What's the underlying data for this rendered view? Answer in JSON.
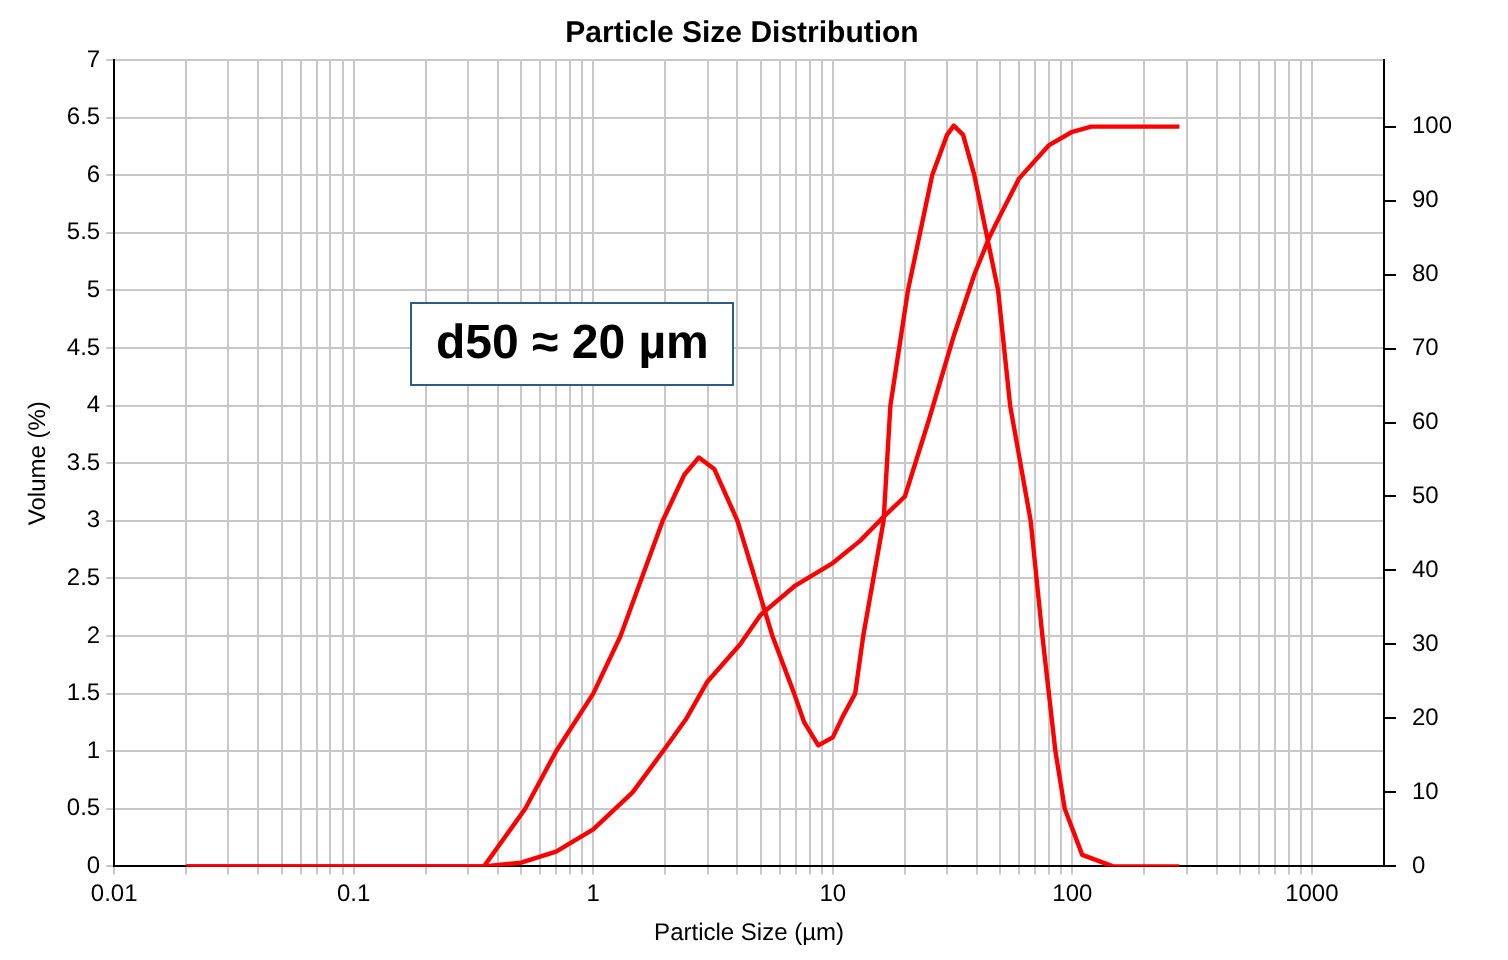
{
  "chart_data": {
    "type": "line",
    "title": "Particle Size Distribution",
    "xlabel": "Particle Size (µm)",
    "ylabel": "Volume (%)",
    "annotations": [
      "d50 ≈ 20 µm"
    ],
    "log": "x",
    "grid": true,
    "legend": false,
    "marker": "none",
    "line_style": "solid",
    "xlim": [
      0.01,
      2000
    ],
    "xticks": [
      0.01,
      {
        "value": 0.02,
        "label": null
      },
      {
        "value": 0.03,
        "label": null
      },
      {
        "value": 0.04,
        "label": null
      },
      {
        "value": 0.05,
        "label": null
      },
      {
        "value": 0.06,
        "label": null
      },
      {
        "value": 0.07,
        "label": null
      },
      {
        "value": 0.08,
        "label": null
      },
      {
        "value": 0.09,
        "label": null
      },
      0.1,
      {
        "value": 0.2,
        "label": null
      },
      {
        "value": 0.3,
        "label": null
      },
      {
        "value": 0.4,
        "label": null
      },
      {
        "value": 0.5,
        "label": null
      },
      {
        "value": 0.6,
        "label": null
      },
      {
        "value": 0.7,
        "label": null
      },
      {
        "value": 0.8,
        "label": null
      },
      {
        "value": 0.9,
        "label": null
      },
      1,
      {
        "value": 2,
        "label": null
      },
      {
        "value": 3,
        "label": null
      },
      {
        "value": 4,
        "label": null
      },
      {
        "value": 5,
        "label": null
      },
      {
        "value": 6,
        "label": null
      },
      {
        "value": 7,
        "label": null
      },
      {
        "value": 8,
        "label": null
      },
      {
        "value": 9,
        "label": null
      },
      10,
      {
        "value": 20,
        "label": null
      },
      {
        "value": 30,
        "label": null
      },
      {
        "value": 40,
        "label": null
      },
      {
        "value": 50,
        "label": null
      },
      {
        "value": 60,
        "label": null
      },
      {
        "value": 70,
        "label": null
      },
      {
        "value": 80,
        "label": null
      },
      {
        "value": 90,
        "label": null
      },
      100,
      {
        "value": 200,
        "label": null
      },
      {
        "value": 300,
        "label": null
      },
      {
        "value": 400,
        "label": null
      },
      {
        "value": 500,
        "label": null
      },
      {
        "value": 600,
        "label": null
      },
      {
        "value": 700,
        "label": null
      },
      {
        "value": 800,
        "label": null
      },
      {
        "value": 900,
        "label": null
      },
      1000
    ],
    "ylim": [
      0,
      7
    ],
    "yticks": [
      0,
      0.5,
      1,
      1.5,
      2,
      2.5,
      3,
      3.5,
      4,
      4.5,
      5,
      5.5,
      6,
      6.5,
      7
    ],
    "y2lim": [
      0,
      109
    ],
    "y2ticks": [
      0,
      10,
      20,
      30,
      40,
      50,
      60,
      70,
      80,
      90,
      100
    ],
    "series": [
      {
        "color": "#ff0000",
        "x": [
          0.02,
          0.35,
          0.52,
          0.7,
          1,
          1.3,
          1.95,
          2.4,
          2.76,
          3.2,
          4,
          5.6,
          6.9,
          7.6,
          8.7,
          10,
          11,
          12.4,
          13.4,
          16.3,
          17.4,
          20.6,
          26,
          30,
          32,
          35,
          39,
          49,
          55,
          67,
          75,
          85,
          93,
          110,
          148,
          280
        ],
        "values": [
          0,
          0,
          0.5,
          1,
          1.5,
          2,
          3,
          3.4,
          3.55,
          3.45,
          3,
          2,
          1.5,
          1.25,
          1.05,
          1.12,
          1.3,
          1.5,
          2,
          3,
          4,
          5,
          6,
          6.35,
          6.43,
          6.35,
          6,
          5,
          4,
          3,
          2,
          1,
          0.5,
          0.1,
          0,
          0
        ]
      },
      {
        "color": "#ff0000",
        "axis": "y2",
        "x": [
          0.02,
          0.35,
          0.5,
          0.7,
          1,
          1.46,
          2,
          2.45,
          3,
          4.1,
          5,
          7,
          10,
          13,
          16,
          20,
          25,
          32,
          39,
          45,
          50,
          60,
          80,
          100,
          120,
          280
        ],
        "values": [
          0,
          0,
          0.5,
          2,
          5,
          10,
          16,
          20,
          25,
          30,
          34,
          38,
          41,
          44,
          47,
          50,
          60,
          71.7,
          80,
          85,
          88,
          93,
          97.5,
          99.3,
          100,
          100
        ]
      }
    ]
  }
}
